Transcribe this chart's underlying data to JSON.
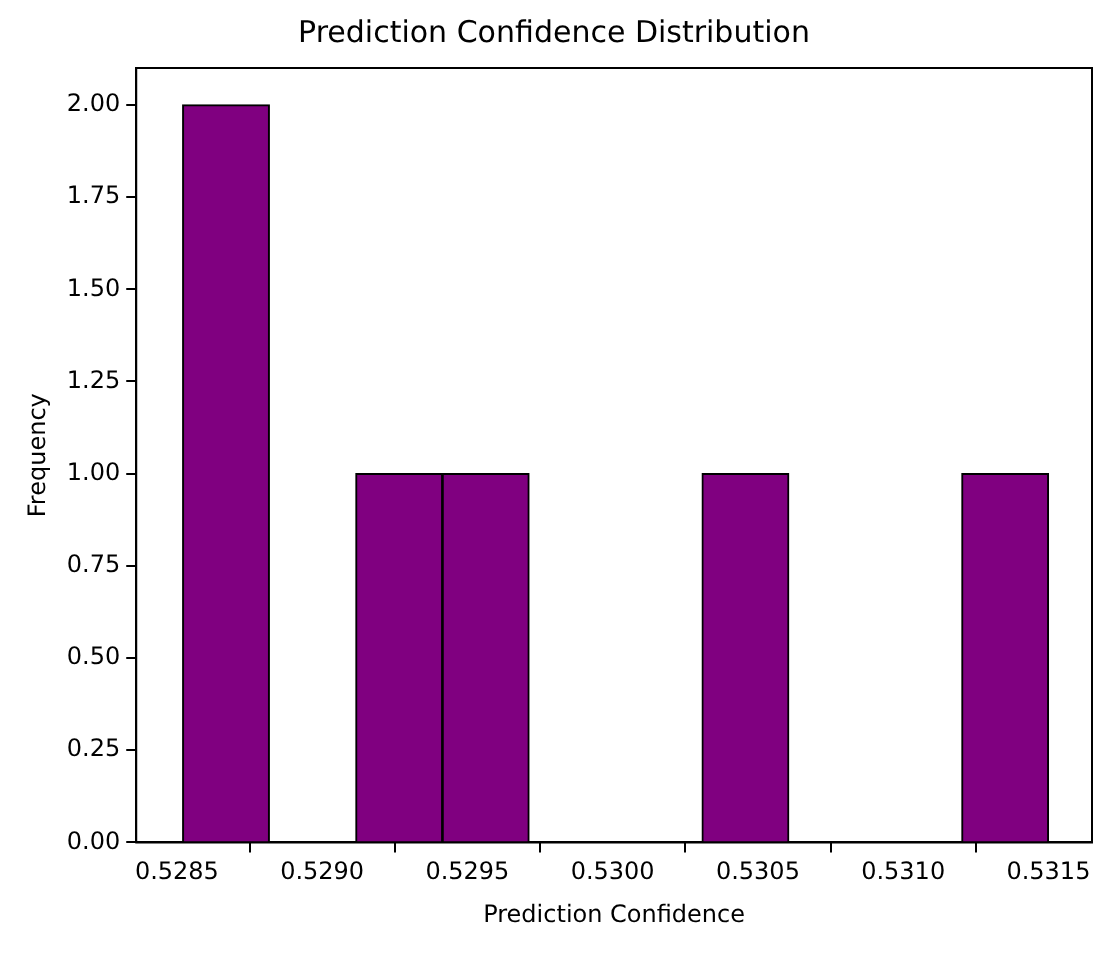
{
  "chart_data": {
    "type": "histogram",
    "title": "Prediction Confidence Distribution",
    "xlabel": "Prediction Confidence",
    "ylabel": "Frequency",
    "bins": [
      0.52852,
      0.528818,
      0.529116,
      0.529414,
      0.529712,
      0.53001,
      0.530308,
      0.530606,
      0.530904,
      0.531202,
      0.5315
    ],
    "values": [
      2,
      0,
      1,
      1,
      0,
      0,
      1,
      0,
      0,
      1
    ],
    "color": "#800080",
    "xlim": [
      0.52836,
      0.53165
    ],
    "xticks": [
      {
        "value": 0.5285,
        "label": "0.5285"
      },
      {
        "value": 0.529,
        "label": "0.5290"
      },
      {
        "value": 0.5295,
        "label": "0.5295"
      },
      {
        "value": 0.53,
        "label": "0.5300"
      },
      {
        "value": 0.5305,
        "label": "0.5305"
      },
      {
        "value": 0.531,
        "label": "0.5310"
      },
      {
        "value": 0.5315,
        "label": "0.5315"
      }
    ],
    "ylim": [
      0,
      2.1
    ],
    "yticks": [
      {
        "value": 0,
        "label": "0.00"
      },
      {
        "value": 0.25,
        "label": "0.25"
      },
      {
        "value": 0.5,
        "label": "0.50"
      },
      {
        "value": 0.75,
        "label": "0.75"
      },
      {
        "value": 1,
        "label": "1.00"
      },
      {
        "value": 1.25,
        "label": "1.25"
      },
      {
        "value": 1.5,
        "label": "1.50"
      },
      {
        "value": 1.75,
        "label": "1.75"
      },
      {
        "value": 2,
        "label": "2.00"
      }
    ],
    "grid": false,
    "legend": false
  }
}
